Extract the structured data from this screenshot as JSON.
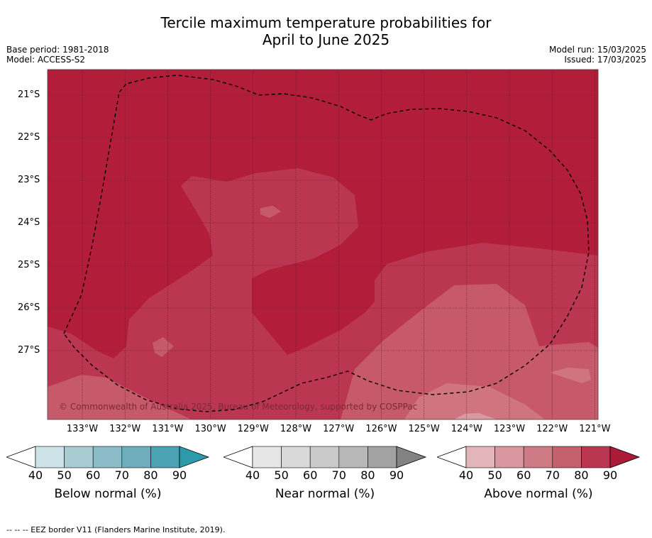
{
  "title_line1": "Tercile maximum temperature probabilities for",
  "title_line2": "April to June 2025",
  "base_period": "Base period: 1981-2018",
  "model": "Model: ACCESS-S2",
  "model_run": "Model run: 15/03/2025",
  "issued": "Issued: 17/03/2025",
  "copyright": "© Commonwealth of Australia 2025, Bureau of Meteorology, supported by COSPPac",
  "lat_labels": [
    "21°S",
    "22°S",
    "23°S",
    "24°S",
    "25°S",
    "26°S",
    "27°S"
  ],
  "lon_labels": [
    "133°W",
    "132°W",
    "131°W",
    "130°W",
    "129°W",
    "128°W",
    "127°W",
    "126°W",
    "125°W",
    "124°W",
    "123°W",
    "122°W",
    "121°W"
  ],
  "colors": {
    "above_80_90": "#b21e3a",
    "above_70_80": "#bb3650",
    "above_60_70": "#c65a6a",
    "above_50_60": "#d07580",
    "above_40_50": "#db9aa2",
    "eez_border": "#000000"
  },
  "legends": [
    {
      "title": "Below normal (%)",
      "ticks": [
        "40",
        "50",
        "60",
        "70",
        "80",
        "90"
      ],
      "colors": [
        "#cde3e8",
        "#a9cbd2",
        "#8bbcc7",
        "#6eadbc",
        "#4aa2b3"
      ],
      "arrow_color": "#2b9aaa"
    },
    {
      "title": "Near normal (%)",
      "ticks": [
        "40",
        "50",
        "60",
        "70",
        "80",
        "90"
      ],
      "colors": [
        "#e6e6e6",
        "#d9d9d9",
        "#cacaca",
        "#b8b8b8",
        "#a2a2a2"
      ],
      "arrow_color": "#838383"
    },
    {
      "title": "Above normal (%)",
      "ticks": [
        "40",
        "50",
        "60",
        "70",
        "80",
        "90"
      ],
      "colors": [
        "#e2b5bb",
        "#d9979f",
        "#cf7b85",
        "#c5606d",
        "#bb3650"
      ],
      "arrow_color": "#ab1a36"
    }
  ],
  "footer": "--  --  -- EEZ border V11 (Flanders Marine Institute, 2019)."
}
